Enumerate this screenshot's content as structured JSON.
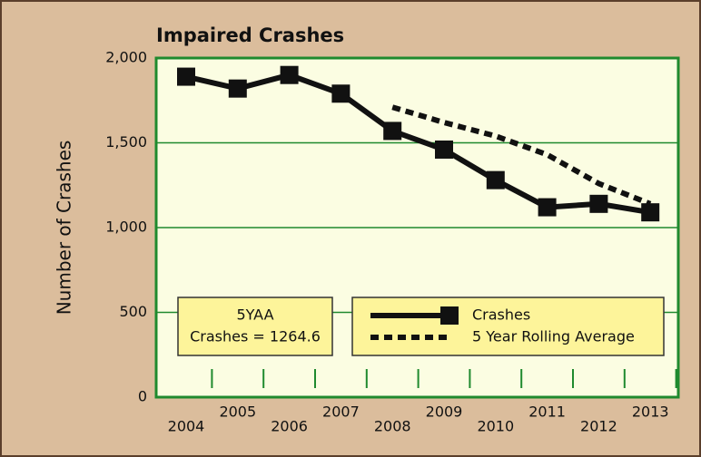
{
  "chart_data": {
    "type": "line",
    "title": "Impaired Crashes",
    "ylabel": "Number of Crashes",
    "categories": [
      "2004",
      "2005",
      "2006",
      "2007",
      "2008",
      "2009",
      "2010",
      "2011",
      "2012",
      "2013"
    ],
    "series": [
      {
        "name": "Crashes",
        "color": "#111111",
        "style": "solid",
        "marker": "square",
        "values": [
          1890,
          1820,
          1900,
          1790,
          1570,
          1460,
          1280,
          1120,
          1140,
          1090
        ]
      },
      {
        "name": "5 Year Rolling Average",
        "color": "#111111",
        "style": "dotted",
        "values": [
          null,
          null,
          null,
          null,
          1710,
          1620,
          1540,
          1430,
          1260,
          1140
        ]
      }
    ],
    "ylim": [
      0,
      2000
    ],
    "yticks": [
      0,
      500,
      {
        "value": 1000,
        "label": "1,000"
      },
      {
        "value": 1500,
        "label": "1,500"
      },
      {
        "value": 2000,
        "label": "2,000"
      }
    ],
    "grid": true,
    "legend": "bottom",
    "annotation": {
      "title": "5YAA",
      "text": "Crashes = 1264.6"
    }
  }
}
